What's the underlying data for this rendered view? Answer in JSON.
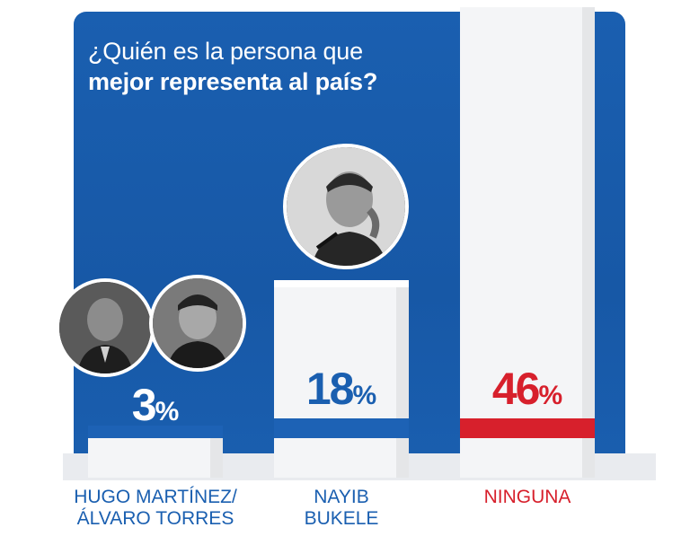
{
  "title": {
    "line1": "¿Quién es la persona que",
    "line2": "mejor representa al país?"
  },
  "colors": {
    "panel_blue": "#1758a6",
    "stripe_blue": "#1d62b5",
    "stripe_red": "#d7202c",
    "text_blue": "#1a5fb0",
    "text_red": "#d7202c"
  },
  "icons": {
    "prohibited": "no-symbol-icon",
    "photos": [
      "candidate-photo-martinez",
      "candidate-photo-torres",
      "candidate-photo-bukele"
    ]
  },
  "chart_data": {
    "type": "bar",
    "categories": [
      "HUGO MARTÍNEZ/\nÁLVARO TORRES",
      "NAYIB\nBUKELE",
      "NINGUNA"
    ],
    "values": [
      3,
      18,
      46
    ],
    "value_labels": [
      "3",
      "18",
      "46"
    ],
    "unit": "%",
    "title": "¿Quién es la persona que mejor representa al país?",
    "xlabel": "",
    "ylabel": "",
    "ylim": [
      0,
      50
    ],
    "grid": false,
    "legend": "none"
  }
}
